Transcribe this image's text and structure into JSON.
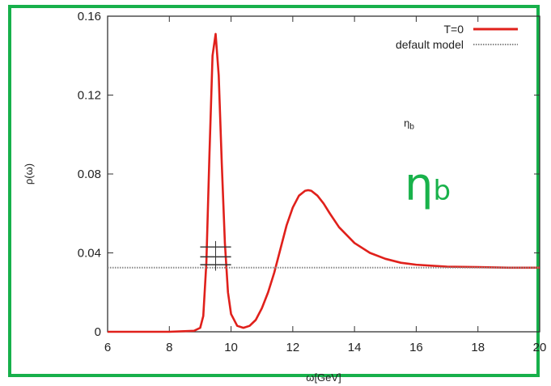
{
  "chart_data": {
    "type": "line",
    "title": "",
    "xlabel": "ω[GeV]",
    "ylabel": "ρ(ω)",
    "xlim": [
      6,
      20
    ],
    "ylim": [
      0,
      0.16
    ],
    "xticks": [
      "6",
      "8",
      "10",
      "12",
      "14",
      "16",
      "18",
      "20"
    ],
    "yticks": [
      "0",
      "0.04",
      "0.08",
      "0.12",
      "0.16"
    ],
    "legend_position": "top-right",
    "grid": false,
    "series": [
      {
        "name": "T=0",
        "color": "#e0201b",
        "style": "solid",
        "x": [
          6.0,
          7.0,
          8.0,
          8.8,
          9.0,
          9.1,
          9.2,
          9.3,
          9.4,
          9.5,
          9.6,
          9.7,
          9.8,
          9.9,
          10.0,
          10.2,
          10.4,
          10.6,
          10.8,
          11.0,
          11.2,
          11.4,
          11.6,
          11.8,
          12.0,
          12.2,
          12.4,
          12.5,
          12.6,
          12.8,
          13.0,
          13.2,
          13.5,
          14.0,
          14.5,
          15.0,
          15.5,
          16.0,
          17.0,
          18.0,
          19.0,
          20.0
        ],
        "y": [
          0.0,
          0.0,
          0.0,
          0.0005,
          0.002,
          0.008,
          0.035,
          0.09,
          0.14,
          0.151,
          0.13,
          0.085,
          0.045,
          0.02,
          0.009,
          0.003,
          0.002,
          0.003,
          0.006,
          0.012,
          0.02,
          0.03,
          0.042,
          0.054,
          0.063,
          0.069,
          0.0715,
          0.0718,
          0.0715,
          0.069,
          0.065,
          0.06,
          0.053,
          0.045,
          0.04,
          0.037,
          0.035,
          0.034,
          0.033,
          0.0328,
          0.0325,
          0.0325
        ]
      },
      {
        "name": "default model",
        "color": "#888888",
        "style": "dotted",
        "x": [
          6,
          20
        ],
        "y": [
          0.0325,
          0.0325
        ]
      }
    ],
    "error_bars": [
      {
        "x": 9.5,
        "y": 0.043,
        "xerr": 0.5
      },
      {
        "x": 9.5,
        "y": 0.038,
        "xerr": 0.5
      },
      {
        "x": 9.5,
        "y": 0.034,
        "xerr": 0.5
      }
    ],
    "annotations": [
      {
        "text": "η",
        "sub": "b",
        "x": 15.6,
        "y": 0.104
      }
    ]
  },
  "overlay": {
    "main": "η",
    "sub": "b",
    "color": "#19b24b"
  }
}
